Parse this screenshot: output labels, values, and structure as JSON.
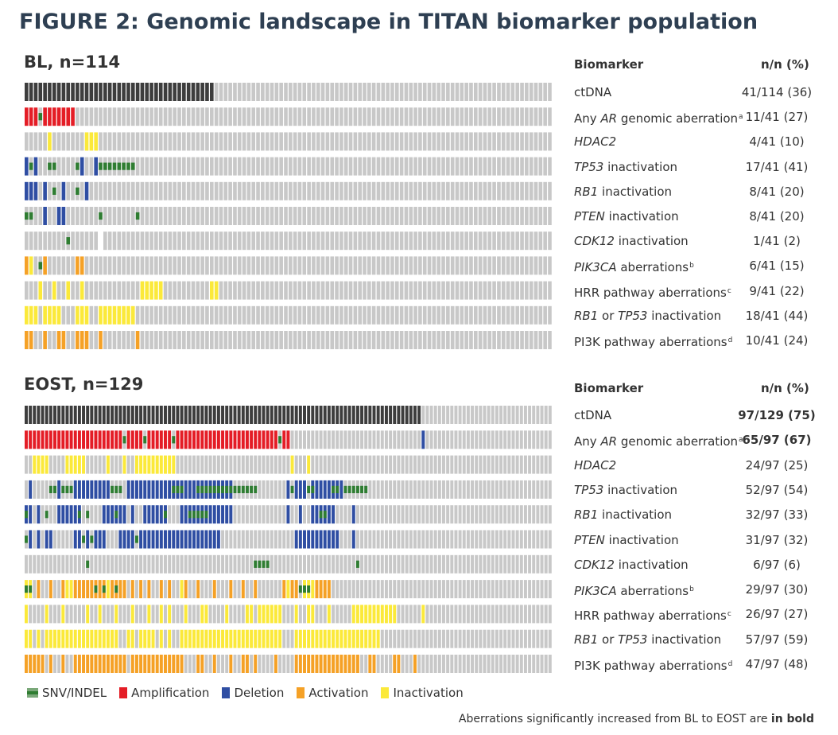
{
  "title": "FIGURE 2: Genomic landscape in TITAN biomarker population",
  "colors": {
    "ctdna": "#3d3d3d",
    "not_altered": "#c8c8c8",
    "amplification": "#e41d26",
    "deletion": "#2f4ea3",
    "activation": "#f5a126",
    "inactivation": "#fbe93a",
    "snv_indel": "#2f7d32"
  },
  "legend": {
    "snv": "SNV/INDEL",
    "amp": "Amplification",
    "del": "Deletion",
    "act": "Activation",
    "inact": "Inactivation"
  },
  "footnote": {
    "text": "Aberrations significantly increased from BL to EOST are",
    "bold": "in bold"
  },
  "chart_data": [
    {
      "type": "table",
      "title": "BL, n=114",
      "column_headers": [
        "Biomarker",
        "n/n (%)"
      ],
      "n_patients": 114,
      "rows": [
        {
          "label": "ctDNA",
          "value": "41/114 (36)",
          "bold": false,
          "positive": [
            [
              0,
              41
            ]
          ]
        },
        {
          "label": "Any |AR| genomic aberration^a",
          "value": "11/41 (27)",
          "bold": false,
          "amp": [
            [
              0,
              3
            ],
            [
              4,
              11
            ]
          ],
          "snv": [
            3
          ]
        },
        {
          "label": "|HDAC2|",
          "value": "4/41 (10)",
          "bold": false,
          "inact": [
            5,
            13,
            14,
            15
          ]
        },
        {
          "label": "|TP53| inactivation",
          "value": "17/41 (41)",
          "bold": false,
          "del": [
            0,
            2,
            12,
            15
          ],
          "snv": [
            1,
            5,
            6,
            11,
            16,
            17,
            18,
            19,
            20,
            21,
            22,
            23
          ]
        },
        {
          "label": "|RB1| inactivation",
          "value": "8/41 (20)",
          "bold": false,
          "del": [
            0,
            1,
            2,
            4,
            8,
            13
          ],
          "snv": [
            6,
            11
          ]
        },
        {
          "label": "|PTEN| inactivation",
          "value": "8/41 (20)",
          "bold": false,
          "del": [
            4,
            7,
            8
          ],
          "snv": [
            0,
            1,
            16,
            24
          ]
        },
        {
          "label": "|CDK12| inactivation",
          "value": "1/41 (2)",
          "bold": false,
          "snv": [
            9
          ],
          "blank": [
            16
          ]
        },
        {
          "label": "|PIK3CA| aberrations^b",
          "value": "6/41 (15)",
          "bold": false,
          "act": [
            0,
            4,
            11,
            12
          ],
          "inact": [
            1
          ],
          "snv": [
            3
          ]
        },
        {
          "label": "HRR pathway aberrations^c",
          "value": "9/41 (22)",
          "bold": false,
          "inact": [
            3,
            6,
            9,
            12,
            25,
            26,
            27,
            28,
            29,
            40,
            41
          ]
        },
        {
          "label": "|RB1| or |TP53| inactivation",
          "value": "18/41 (44)",
          "bold": false,
          "inact": [
            0,
            1,
            2,
            4,
            5,
            6,
            7,
            11,
            12,
            13,
            16,
            17,
            18,
            19,
            20,
            21,
            22,
            23
          ]
        },
        {
          "label": "PI3K pathway aberrations^d",
          "value": "10/41 (24)",
          "bold": false,
          "act": [
            0,
            1,
            4,
            7,
            8,
            11,
            12,
            13,
            16,
            24
          ]
        }
      ]
    },
    {
      "type": "table",
      "title": "EOST, n=129",
      "column_headers": [
        "Biomarker",
        "n/n (%)"
      ],
      "n_patients": 129,
      "rows": [
        {
          "label": "ctDNA",
          "value": "97/129 (75)",
          "bold": true,
          "positive": [
            [
              0,
              97
            ]
          ]
        },
        {
          "label": "Any |AR| genomic aberration^a",
          "value": "65/97 (67)",
          "bold": true,
          "amp": [
            [
              0,
              24
            ],
            [
              25,
              29
            ],
            [
              30,
              36
            ],
            [
              37,
              62
            ],
            [
              63,
              65
            ]
          ],
          "snv": [
            24,
            29,
            36,
            62
          ],
          "del": [
            97
          ]
        },
        {
          "label": "|HDAC2|",
          "value": "24/97 (25)",
          "bold": false,
          "inact": [
            2,
            3,
            4,
            5,
            10,
            11,
            12,
            13,
            14,
            20,
            24,
            27,
            28,
            29,
            30,
            31,
            32,
            33,
            34,
            35,
            36,
            65,
            69
          ]
        },
        {
          "label": "|TP53| inactivation",
          "value": "52/97 (54)",
          "bold": false,
          "del": [
            1,
            8,
            12,
            13,
            14,
            15,
            16,
            17,
            18,
            19,
            20,
            25,
            26,
            27,
            28,
            29,
            30,
            31,
            32,
            33,
            34,
            35,
            36,
            37,
            38,
            39,
            40,
            41,
            42,
            43,
            44,
            45,
            46,
            47,
            48,
            49,
            50,
            64,
            66,
            67,
            68,
            70,
            71,
            72,
            73,
            74,
            75,
            76,
            77
          ],
          "snv": [
            6,
            7,
            9,
            10,
            11,
            21,
            22,
            23,
            36,
            37,
            38,
            42,
            43,
            44,
            45,
            46,
            47,
            48,
            49,
            50,
            51,
            52,
            53,
            54,
            55,
            56,
            65,
            69,
            70,
            75,
            76,
            78,
            79,
            80,
            81,
            82,
            83
          ]
        },
        {
          "label": "|RB1| inactivation",
          "value": "32/97 (33)",
          "bold": false,
          "del": [
            0,
            1,
            3,
            8,
            9,
            10,
            11,
            12,
            13,
            19,
            20,
            21,
            22,
            23,
            24,
            26,
            29,
            30,
            31,
            32,
            33,
            34,
            38,
            39,
            40,
            41,
            42,
            43,
            44,
            45,
            46,
            47,
            48,
            49,
            50,
            64,
            67,
            70,
            71,
            72,
            73,
            74,
            75,
            80
          ],
          "snv": [
            0,
            5,
            13,
            15,
            22,
            34,
            40,
            41,
            42,
            43,
            44,
            72,
            73
          ]
        },
        {
          "label": "|PTEN| inactivation",
          "value": "31/97 (32)",
          "bold": false,
          "del": [
            1,
            3,
            5,
            6,
            12,
            13,
            15,
            17,
            18,
            19,
            23,
            24,
            25,
            26,
            28,
            29,
            30,
            31,
            32,
            33,
            34,
            35,
            36,
            37,
            38,
            39,
            40,
            41,
            42,
            43,
            44,
            45,
            46,
            47,
            66,
            67,
            68,
            69,
            70,
            71,
            72,
            73,
            74,
            75,
            76,
            80
          ],
          "snv": [
            0,
            14,
            16,
            27
          ]
        },
        {
          "label": "|CDK12| inactivation",
          "value": "6/97 (6)",
          "bold": false,
          "snv": [
            15,
            56,
            57,
            58,
            59,
            81
          ]
        },
        {
          "label": "|PIK3CA| aberrations^b",
          "value": "29/97 (30)",
          "bold": false,
          "act": [
            3,
            6,
            9,
            12,
            13,
            14,
            15,
            16,
            17,
            18,
            19,
            21,
            22,
            23,
            24,
            26,
            28,
            30,
            33,
            35,
            39,
            42,
            46,
            50,
            53,
            56,
            63,
            65,
            66,
            71,
            72,
            73,
            74
          ],
          "inact": [
            0,
            1,
            10,
            11,
            20,
            38,
            64,
            68,
            69,
            70
          ],
          "snv": [
            0,
            1,
            17,
            19,
            22,
            67,
            68,
            69
          ]
        },
        {
          "label": "HRR pathway aberrations^c",
          "value": "26/97 (27)",
          "bold": false,
          "inact": [
            0,
            5,
            9,
            15,
            18,
            22,
            26,
            30,
            33,
            35,
            39,
            43,
            44,
            49,
            54,
            55,
            57,
            58,
            59,
            60,
            61,
            62,
            66,
            69,
            70,
            74,
            80,
            81,
            82,
            83,
            84,
            85,
            86,
            87,
            88,
            89,
            90,
            97
          ]
        },
        {
          "label": "|RB1| or |TP53| inactivation",
          "value": "57/97 (59)",
          "bold": false,
          "inact": [
            0,
            1,
            3,
            5,
            6,
            7,
            8,
            9,
            10,
            11,
            12,
            13,
            14,
            15,
            16,
            17,
            18,
            19,
            20,
            21,
            22,
            25,
            26,
            28,
            29,
            30,
            31,
            33,
            35,
            38,
            39,
            40,
            41,
            42,
            43,
            44,
            45,
            46,
            47,
            48,
            49,
            50,
            51,
            52,
            53,
            54,
            55,
            56,
            57,
            58,
            59,
            60,
            61,
            62,
            66,
            67,
            68,
            69,
            70,
            71,
            72,
            73,
            74,
            75,
            76,
            77,
            78,
            79,
            80,
            81,
            82,
            83,
            84,
            85,
            86
          ]
        },
        {
          "label": "PI3K pathway aberrations^d",
          "value": "47/97 (48)",
          "bold": false,
          "act": [
            0,
            1,
            2,
            3,
            4,
            6,
            9,
            12,
            13,
            14,
            15,
            16,
            17,
            18,
            19,
            20,
            21,
            22,
            23,
            24,
            26,
            27,
            28,
            29,
            30,
            31,
            32,
            33,
            34,
            35,
            36,
            37,
            38,
            42,
            43,
            46,
            50,
            53,
            54,
            56,
            61,
            66,
            67,
            68,
            69,
            70,
            71,
            72,
            73,
            74,
            75,
            76,
            77,
            78,
            79,
            80,
            81,
            84,
            85,
            90,
            91,
            95
          ]
        }
      ]
    }
  ]
}
